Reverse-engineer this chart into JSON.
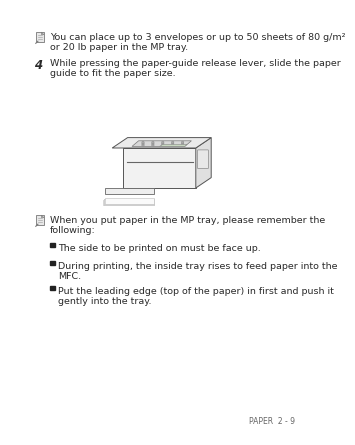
{
  "bg_color": "#ffffff",
  "dark_color": "#2a2a2a",
  "note1_text_line1": "You can place up to 3 envelopes or up to 50 sheets of 80 g/m²",
  "note1_text_line2": "or 20 lb paper in the MP tray.",
  "step4_num": "4",
  "step4_line1": "While pressing the paper-guide release lever, slide the paper",
  "step4_line2": "guide to fit the paper size.",
  "note2_line1": "When you put paper in the MP tray, please remember the",
  "note2_line2": "following:",
  "bullet1": "The side to be printed on must be face up.",
  "bullet2_line1": "During printing, the inside tray rises to feed paper into the",
  "bullet2_line2": "MFC.",
  "bullet3_line1": "Put the leading edge (top of the paper) in first and push it",
  "bullet3_line2": "gently into the tray.",
  "footer_text": "PAPER  2 - 9",
  "font_size_body": 6.8,
  "font_size_step_num": 8.5,
  "font_size_footer": 5.5,
  "icon_color": "#888888",
  "line_color": "#444444"
}
